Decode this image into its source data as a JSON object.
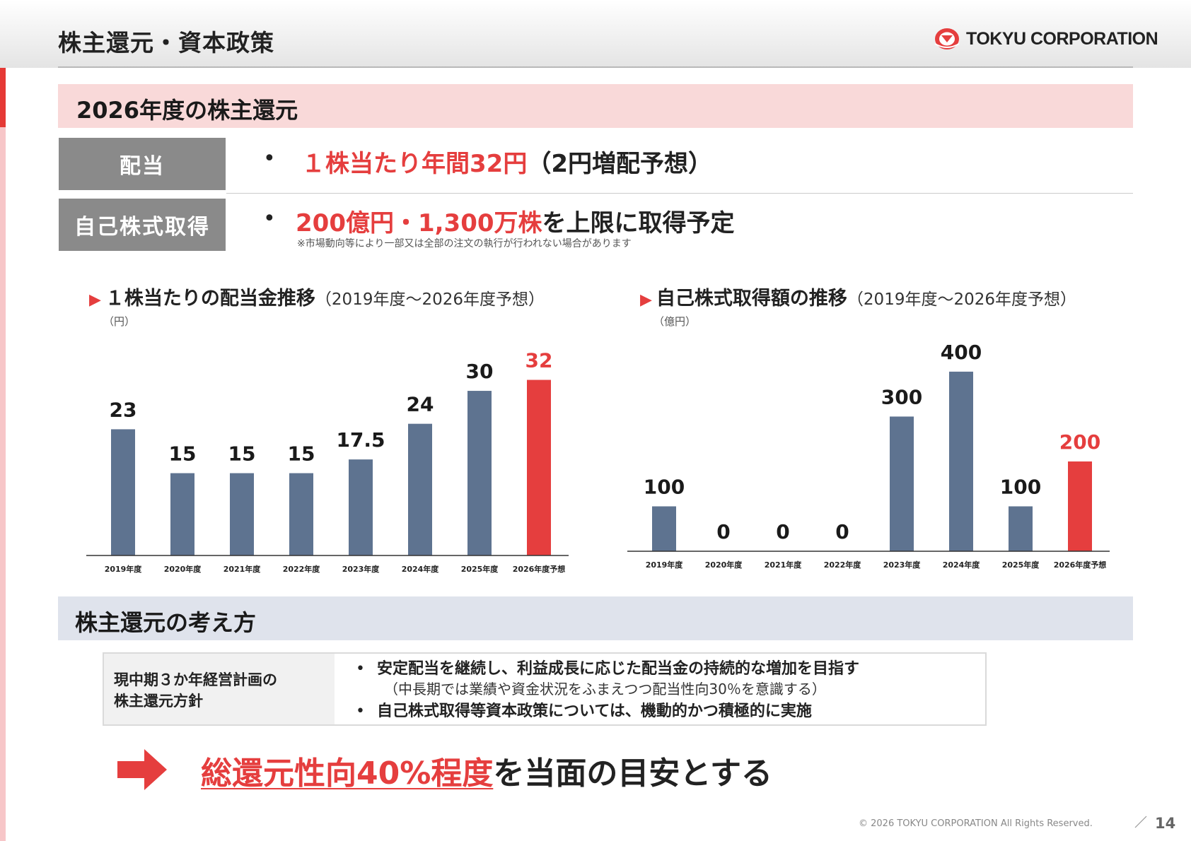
{
  "header": {
    "title": "株主還元・資本政策",
    "logo_text": "TOKYU CORPORATION"
  },
  "section1": {
    "title": "2026年度の株主還元",
    "dividend": {
      "label": "配当",
      "highlight": "１株当たり年間32円",
      "rest": "（2円増配予想）"
    },
    "buyback": {
      "label": "自己株式取得",
      "highlight": "200億円・1,300万株",
      "rest": "を上限に取得予定",
      "note": "※市場動向等により一部又は全部の注文の執行が行われない場合があります"
    }
  },
  "chart_data": [
    {
      "type": "bar",
      "title": "１株当たりの配当金推移",
      "subtitle": "（2019年度～2026年度予想）",
      "ylabel": "（円）",
      "xlabel": "",
      "categories": [
        "2019年度",
        "2020年度",
        "2021年度",
        "2022年度",
        "2023年度",
        "2024年度",
        "2025年度",
        "2026年度予想"
      ],
      "values": [
        23,
        15,
        15,
        15,
        17.5,
        24,
        30,
        32
      ],
      "value_labels": [
        "23",
        "15",
        "15",
        "15",
        "17.5",
        "24",
        "30",
        "32"
      ],
      "ylim": [
        0,
        34
      ],
      "grid": false,
      "highlight_index": 7,
      "colors": {
        "bar": "#5e7390",
        "highlight": "#e53e3e"
      }
    },
    {
      "type": "bar",
      "title": "自己株式取得額の推移",
      "subtitle": "（2019年度～2026年度予想）",
      "ylabel": "（億円）",
      "xlabel": "",
      "categories": [
        "2019年度",
        "2020年度",
        "2021年度",
        "2022年度",
        "2023年度",
        "2024年度",
        "2025年度",
        "2026年度予想"
      ],
      "values": [
        100,
        0,
        0,
        0,
        300,
        400,
        100,
        200
      ],
      "value_labels": [
        "100",
        "0",
        "0",
        "0",
        "300",
        "400",
        "100",
        "200"
      ],
      "ylim": [
        0,
        425
      ],
      "grid": false,
      "highlight_index": 7,
      "colors": {
        "bar": "#5e7390",
        "highlight": "#e53e3e"
      }
    }
  ],
  "section2": {
    "title": "株主還元の考え方",
    "policy_label_line1": "現中期３か年経営計画の",
    "policy_label_line2": "株主還元方針",
    "item1": "安定配当を継続し、利益成長に応じた配当金の持続的な増加を目指す",
    "item1_note": "（中長期では業績や資金状況をふまえつつ配当性向30％を意識する）",
    "item2": "自己株式取得等資本政策については、機動的かつ積極的に実施",
    "bullet": "•"
  },
  "conclusion": {
    "emphasis": "総還元性向40%程度",
    "rest": "を当面の目安とする"
  },
  "footer": {
    "copyright": "© 2026 TOKYU CORPORATION All Rights Reserved.",
    "page": "14"
  },
  "icons": {
    "logo": "tokyu-logo-icon",
    "arrow": "arrow-right-icon",
    "heading_marker": "triangle-right-icon"
  },
  "colors": {
    "accent_red": "#e53e3e",
    "bar_blue": "#5e7390",
    "band_pink": "#f9d9d9",
    "band_gray_blue": "#dfe3ec",
    "label_gray": "#8a8a8a"
  }
}
